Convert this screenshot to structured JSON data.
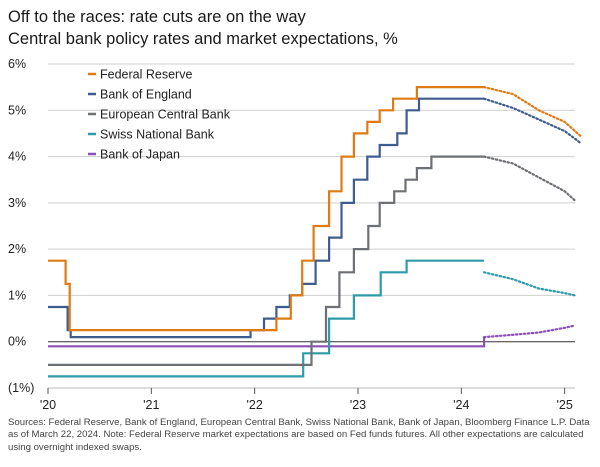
{
  "title": "Off to the races: rate cuts are on the way",
  "subtitle": "Central bank policy rates and market expectations, %",
  "footnote": "Sources: Federal Reserve, Bank of England, European Central Bank, Swiss National Bank, Bank of Japan, Bloomberg Finance L.P. Data as of March 22, 2024. Note: Federal Reserve market expectations are based on Fed funds futures. All other expectations are calculated using overnight indexed swaps.",
  "chart_data": {
    "type": "line",
    "title": "Off to the races: rate cuts are on the way",
    "subtitle": "Central bank policy rates and market expectations, %",
    "xlabel": "",
    "ylabel": "",
    "x_ticks": [
      "'20",
      "'21",
      "'22",
      "'23",
      "'24",
      "'25"
    ],
    "x_tick_values": [
      2020,
      2021,
      2022,
      2023,
      2024,
      2025
    ],
    "xlim": [
      2020,
      2025.1
    ],
    "y_ticks": [
      "(1%)",
      "0%",
      "1%",
      "2%",
      "3%",
      "4%",
      "5%",
      "6%"
    ],
    "y_tick_values": [
      -1,
      0,
      1,
      2,
      3,
      4,
      5,
      6
    ],
    "ylim": [
      -1,
      6
    ],
    "grid": "horizontal",
    "legend_position": "top-left",
    "series": [
      {
        "name": "Federal Reserve",
        "color": "#e07b14",
        "actual": [
          [
            2020.0,
            1.75
          ],
          [
            2020.17,
            1.75
          ],
          [
            2020.17,
            1.25
          ],
          [
            2020.21,
            1.25
          ],
          [
            2020.21,
            0.25
          ],
          [
            2022.21,
            0.25
          ],
          [
            2022.21,
            0.5
          ],
          [
            2022.35,
            0.5
          ],
          [
            2022.35,
            1.0
          ],
          [
            2022.46,
            1.0
          ],
          [
            2022.46,
            1.75
          ],
          [
            2022.57,
            1.75
          ],
          [
            2022.57,
            2.5
          ],
          [
            2022.72,
            2.5
          ],
          [
            2022.72,
            3.25
          ],
          [
            2022.84,
            3.25
          ],
          [
            2022.84,
            4.0
          ],
          [
            2022.96,
            4.0
          ],
          [
            2022.96,
            4.5
          ],
          [
            2023.09,
            4.5
          ],
          [
            2023.09,
            4.75
          ],
          [
            2023.21,
            4.75
          ],
          [
            2023.21,
            5.0
          ],
          [
            2023.34,
            5.0
          ],
          [
            2023.34,
            5.25
          ],
          [
            2023.57,
            5.25
          ],
          [
            2023.57,
            5.5
          ],
          [
            2024.22,
            5.5
          ]
        ],
        "expected": [
          [
            2024.22,
            5.5
          ],
          [
            2024.5,
            5.35
          ],
          [
            2024.75,
            5.0
          ],
          [
            2025.0,
            4.75
          ],
          [
            2025.15,
            4.45
          ]
        ]
      },
      {
        "name": "Bank of England",
        "color": "#3f5c8e",
        "actual": [
          [
            2020.0,
            0.75
          ],
          [
            2020.19,
            0.75
          ],
          [
            2020.19,
            0.25
          ],
          [
            2020.22,
            0.25
          ],
          [
            2020.22,
            0.1
          ],
          [
            2021.96,
            0.1
          ],
          [
            2021.96,
            0.25
          ],
          [
            2022.09,
            0.25
          ],
          [
            2022.09,
            0.5
          ],
          [
            2022.21,
            0.5
          ],
          [
            2022.21,
            0.75
          ],
          [
            2022.34,
            0.75
          ],
          [
            2022.34,
            1.0
          ],
          [
            2022.46,
            1.0
          ],
          [
            2022.46,
            1.25
          ],
          [
            2022.59,
            1.25
          ],
          [
            2022.59,
            1.75
          ],
          [
            2022.72,
            1.75
          ],
          [
            2022.72,
            2.25
          ],
          [
            2022.84,
            2.25
          ],
          [
            2022.84,
            3.0
          ],
          [
            2022.96,
            3.0
          ],
          [
            2022.96,
            3.5
          ],
          [
            2023.09,
            3.5
          ],
          [
            2023.09,
            4.0
          ],
          [
            2023.21,
            4.0
          ],
          [
            2023.21,
            4.25
          ],
          [
            2023.38,
            4.25
          ],
          [
            2023.38,
            4.5
          ],
          [
            2023.47,
            4.5
          ],
          [
            2023.47,
            5.0
          ],
          [
            2023.59,
            5.0
          ],
          [
            2023.59,
            5.25
          ],
          [
            2024.22,
            5.25
          ]
        ],
        "expected": [
          [
            2024.22,
            5.25
          ],
          [
            2024.5,
            5.05
          ],
          [
            2024.75,
            4.8
          ],
          [
            2025.0,
            4.55
          ],
          [
            2025.15,
            4.3
          ]
        ]
      },
      {
        "name": "European Central Bank",
        "color": "#6d7075",
        "actual": [
          [
            2020.0,
            -0.5
          ],
          [
            2022.55,
            -0.5
          ],
          [
            2022.55,
            0.0
          ],
          [
            2022.69,
            0.0
          ],
          [
            2022.69,
            0.75
          ],
          [
            2022.82,
            0.75
          ],
          [
            2022.82,
            1.5
          ],
          [
            2022.96,
            1.5
          ],
          [
            2022.96,
            2.0
          ],
          [
            2023.1,
            2.0
          ],
          [
            2023.1,
            2.5
          ],
          [
            2023.21,
            2.5
          ],
          [
            2023.21,
            3.0
          ],
          [
            2023.35,
            3.0
          ],
          [
            2023.35,
            3.25
          ],
          [
            2023.46,
            3.25
          ],
          [
            2023.46,
            3.5
          ],
          [
            2023.57,
            3.5
          ],
          [
            2023.57,
            3.75
          ],
          [
            2023.71,
            3.75
          ],
          [
            2023.71,
            4.0
          ],
          [
            2024.22,
            4.0
          ]
        ],
        "expected": [
          [
            2024.22,
            4.0
          ],
          [
            2024.5,
            3.85
          ],
          [
            2024.75,
            3.55
          ],
          [
            2025.0,
            3.25
          ],
          [
            2025.1,
            3.05
          ]
        ]
      },
      {
        "name": "Swiss National Bank",
        "color": "#2e9ba8",
        "actual": [
          [
            2020.0,
            -0.75
          ],
          [
            2022.47,
            -0.75
          ],
          [
            2022.47,
            -0.25
          ],
          [
            2022.72,
            -0.25
          ],
          [
            2022.72,
            0.5
          ],
          [
            2022.96,
            0.5
          ],
          [
            2022.96,
            1.0
          ],
          [
            2023.22,
            1.0
          ],
          [
            2023.22,
            1.5
          ],
          [
            2023.47,
            1.5
          ],
          [
            2023.47,
            1.75
          ],
          [
            2024.22,
            1.75
          ]
        ],
        "expected": [
          [
            2024.22,
            1.5
          ],
          [
            2024.5,
            1.35
          ],
          [
            2024.75,
            1.15
          ],
          [
            2025.0,
            1.05
          ],
          [
            2025.1,
            1.0
          ]
        ]
      },
      {
        "name": "Bank of Japan",
        "color": "#8a4fb8",
        "actual": [
          [
            2020.0,
            -0.1
          ],
          [
            2024.22,
            -0.1
          ],
          [
            2024.22,
            0.1
          ]
        ],
        "expected": [
          [
            2024.22,
            0.1
          ],
          [
            2024.5,
            0.15
          ],
          [
            2024.75,
            0.2
          ],
          [
            2025.0,
            0.3
          ],
          [
            2025.1,
            0.35
          ]
        ]
      }
    ]
  }
}
